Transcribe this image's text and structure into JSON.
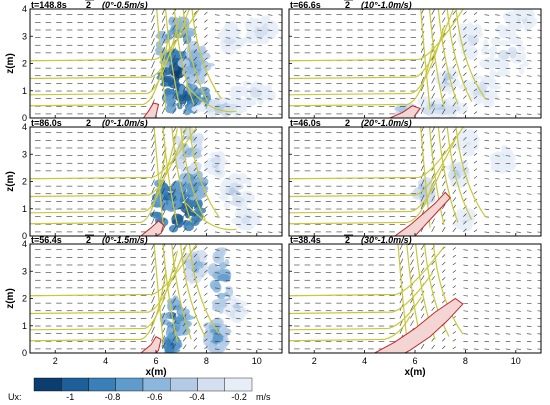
{
  "chart_data": [
    {
      "type": "heatmap",
      "title_time": "t=148.8s",
      "title_marker": "2",
      "title_case": "(0°-0.5m/s)",
      "ylabel": "z(m)",
      "xlabel": "",
      "xlim": [
        1,
        11
      ],
      "ylim": [
        0,
        4
      ],
      "xticks": [
        2,
        4,
        6,
        8,
        10
      ],
      "yticks": [
        0,
        1,
        2,
        3,
        4
      ],
      "show_xticklabels": false,
      "show_yticklabels": true,
      "grid": true
    },
    {
      "type": "heatmap",
      "title_time": "t=66.6s",
      "title_marker": "2",
      "title_case": "(10°-1.0m/s)",
      "ylabel": "",
      "xlabel": "",
      "xlim": [
        1,
        11
      ],
      "ylim": [
        0,
        4
      ],
      "xticks": [
        2,
        4,
        6,
        8,
        10
      ],
      "yticks": [
        0,
        1,
        2,
        3,
        4
      ],
      "show_xticklabels": false,
      "show_yticklabels": false,
      "grid": true
    },
    {
      "type": "heatmap",
      "title_time": "t=86.0s",
      "title_marker": "2",
      "title_case": "(0°-1.0m/s)",
      "ylabel": "z(m)",
      "xlabel": "",
      "xlim": [
        1,
        11
      ],
      "ylim": [
        0,
        4
      ],
      "xticks": [
        2,
        4,
        6,
        8,
        10
      ],
      "yticks": [
        0,
        1,
        2,
        3,
        4
      ],
      "show_xticklabels": false,
      "show_yticklabels": true,
      "grid": true
    },
    {
      "type": "heatmap",
      "title_time": "t=46.0s",
      "title_marker": "2",
      "title_case": "(20°-1.0m/s)",
      "ylabel": "",
      "xlabel": "",
      "xlim": [
        1,
        11
      ],
      "ylim": [
        0,
        4
      ],
      "xticks": [
        2,
        4,
        6,
        8,
        10
      ],
      "yticks": [
        0,
        1,
        2,
        3,
        4
      ],
      "show_xticklabels": false,
      "show_yticklabels": false,
      "grid": true
    },
    {
      "type": "heatmap",
      "title_time": "t=56.4s",
      "title_marker": "2",
      "title_case": "(0°-1.5m/s)",
      "ylabel": "z(m)",
      "xlabel": "x(m)",
      "xlim": [
        1,
        11
      ],
      "ylim": [
        0,
        4
      ],
      "xticks": [
        2,
        4,
        6,
        8,
        10
      ],
      "yticks": [
        0,
        1,
        2,
        3,
        4
      ],
      "show_xticklabels": true,
      "show_yticklabels": true,
      "grid": true
    },
    {
      "type": "heatmap",
      "title_time": "t=38.4s",
      "title_marker": "2",
      "title_case": "(30°-1.0m/s)",
      "ylabel": "",
      "xlabel": "x(m)",
      "xlim": [
        1,
        11
      ],
      "ylim": [
        0,
        4
      ],
      "xticks": [
        2,
        4,
        6,
        8,
        10
      ],
      "yticks": [
        0,
        1,
        2,
        3,
        4
      ],
      "show_xticklabels": true,
      "show_yticklabels": false,
      "grid": true
    }
  ],
  "colorbar": {
    "label": "Ux:",
    "unit": "m/s",
    "tick_labels": [
      "-1",
      "-0.8",
      "-0.6",
      "-0.4",
      "-0.2"
    ],
    "colors": [
      "#0b3d6e",
      "#1f5f99",
      "#3a80b8",
      "#5f9bcb",
      "#8cb6dc",
      "#b4cbe6",
      "#d4dff0",
      "#e8eef8"
    ]
  },
  "colors": {
    "streamline": "#c8c83c",
    "pile_outline": "#c0282d",
    "pile_fill": "#f3d6d4",
    "vector": "#333333"
  }
}
